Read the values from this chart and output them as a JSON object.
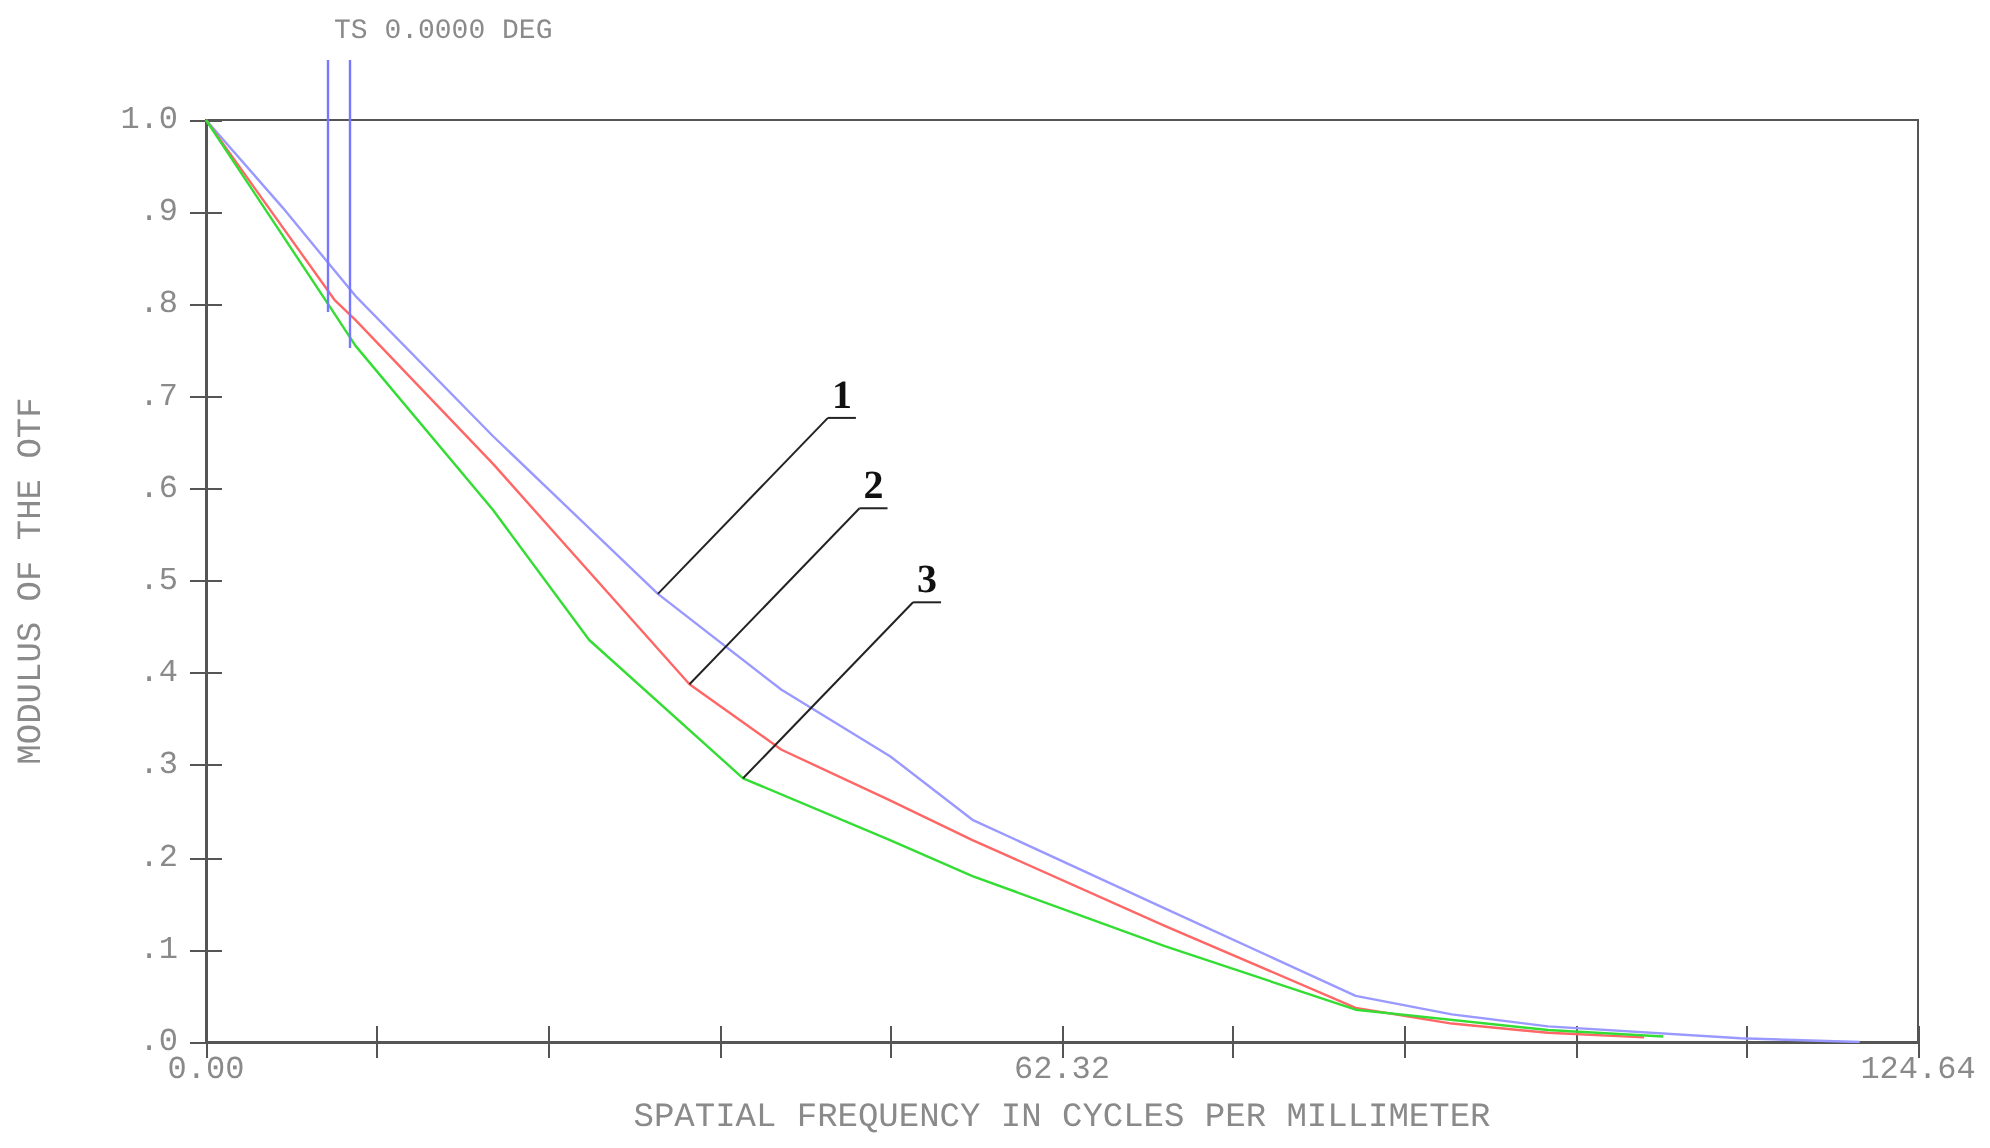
{
  "chart_data": {
    "type": "line",
    "title": "TS 0.0000 DEG",
    "xlabel": "SPATIAL FREQUENCY IN CYCLES PER MILLIMETER",
    "ylabel": "MODULUS OF THE OTF",
    "xlim": [
      0,
      124.64
    ],
    "ylim": [
      0,
      1
    ],
    "xticks": [
      {
        "value": 0,
        "label": "0.00"
      },
      {
        "value": 12.464,
        "label": null
      },
      {
        "value": 24.928,
        "label": null
      },
      {
        "value": 37.392,
        "label": null
      },
      {
        "value": 49.856,
        "label": null
      },
      {
        "value": 62.32,
        "label": "62.32"
      },
      {
        "value": 74.784,
        "label": null
      },
      {
        "value": 87.248,
        "label": null
      },
      {
        "value": 99.712,
        "label": null
      },
      {
        "value": 112.176,
        "label": null
      },
      {
        "value": 124.64,
        "label": "124.64"
      }
    ],
    "yticks": [
      {
        "value": 0,
        "label": ".0"
      },
      {
        "value": 0.1,
        "label": ".1"
      },
      {
        "value": 0.2,
        "label": ".2"
      },
      {
        "value": 0.3,
        "label": ".3"
      },
      {
        "value": 0.4,
        "label": ".4"
      },
      {
        "value": 0.5,
        "label": ".5"
      },
      {
        "value": 0.6,
        "label": ".6"
      },
      {
        "value": 0.7,
        "label": ".7"
      },
      {
        "value": 0.8,
        "label": ".8"
      },
      {
        "value": 0.9,
        "label": ".9"
      },
      {
        "value": 1,
        "label": "1.0"
      }
    ],
    "grid": false,
    "marker": "none",
    "line_style": "solid",
    "series": [
      {
        "color": "#9999ff",
        "x": [
          0,
          5.58,
          10.89,
          20.9,
          32.9,
          41.9,
          49.8,
          55.8,
          69.8,
          83.7,
          90.7,
          97.7,
          111.7,
          120.4
        ],
        "values": [
          1.0,
          0.905,
          0.809,
          0.657,
          0.486,
          0.382,
          0.31,
          0.241,
          0.145,
          0.05,
          0.03,
          0.017,
          0.004,
          0
        ]
      },
      {
        "color": "#ff6666",
        "x": [
          0,
          9.35,
          10.89,
          20.9,
          35.2,
          41.9,
          49.8,
          55.8,
          69.8,
          83.7,
          90.7,
          97.7,
          104.7
        ],
        "values": [
          1.0,
          0.805,
          0.783,
          0.627,
          0.388,
          0.317,
          0.262,
          0.219,
          0.126,
          0.037,
          0.02,
          0.01,
          0.005
        ]
      },
      {
        "color": "#33dd33",
        "x": [
          0,
          9.35,
          10.89,
          20.9,
          27.9,
          39.1,
          49.8,
          55.8,
          69.8,
          83.7,
          97.7,
          106.1
        ],
        "values": [
          1.0,
          0.79,
          0.755,
          0.577,
          0.436,
          0.286,
          0.219,
          0.18,
          0.104,
          0.035,
          0.013,
          0.006
        ]
      }
    ],
    "annotations": [
      {
        "text": "1",
        "x": 32.9,
        "y": 0.486
      },
      {
        "text": "2",
        "x": 35.2,
        "y": 0.388
      },
      {
        "text": "3",
        "x": 39.1,
        "y": 0.286
      }
    ]
  }
}
